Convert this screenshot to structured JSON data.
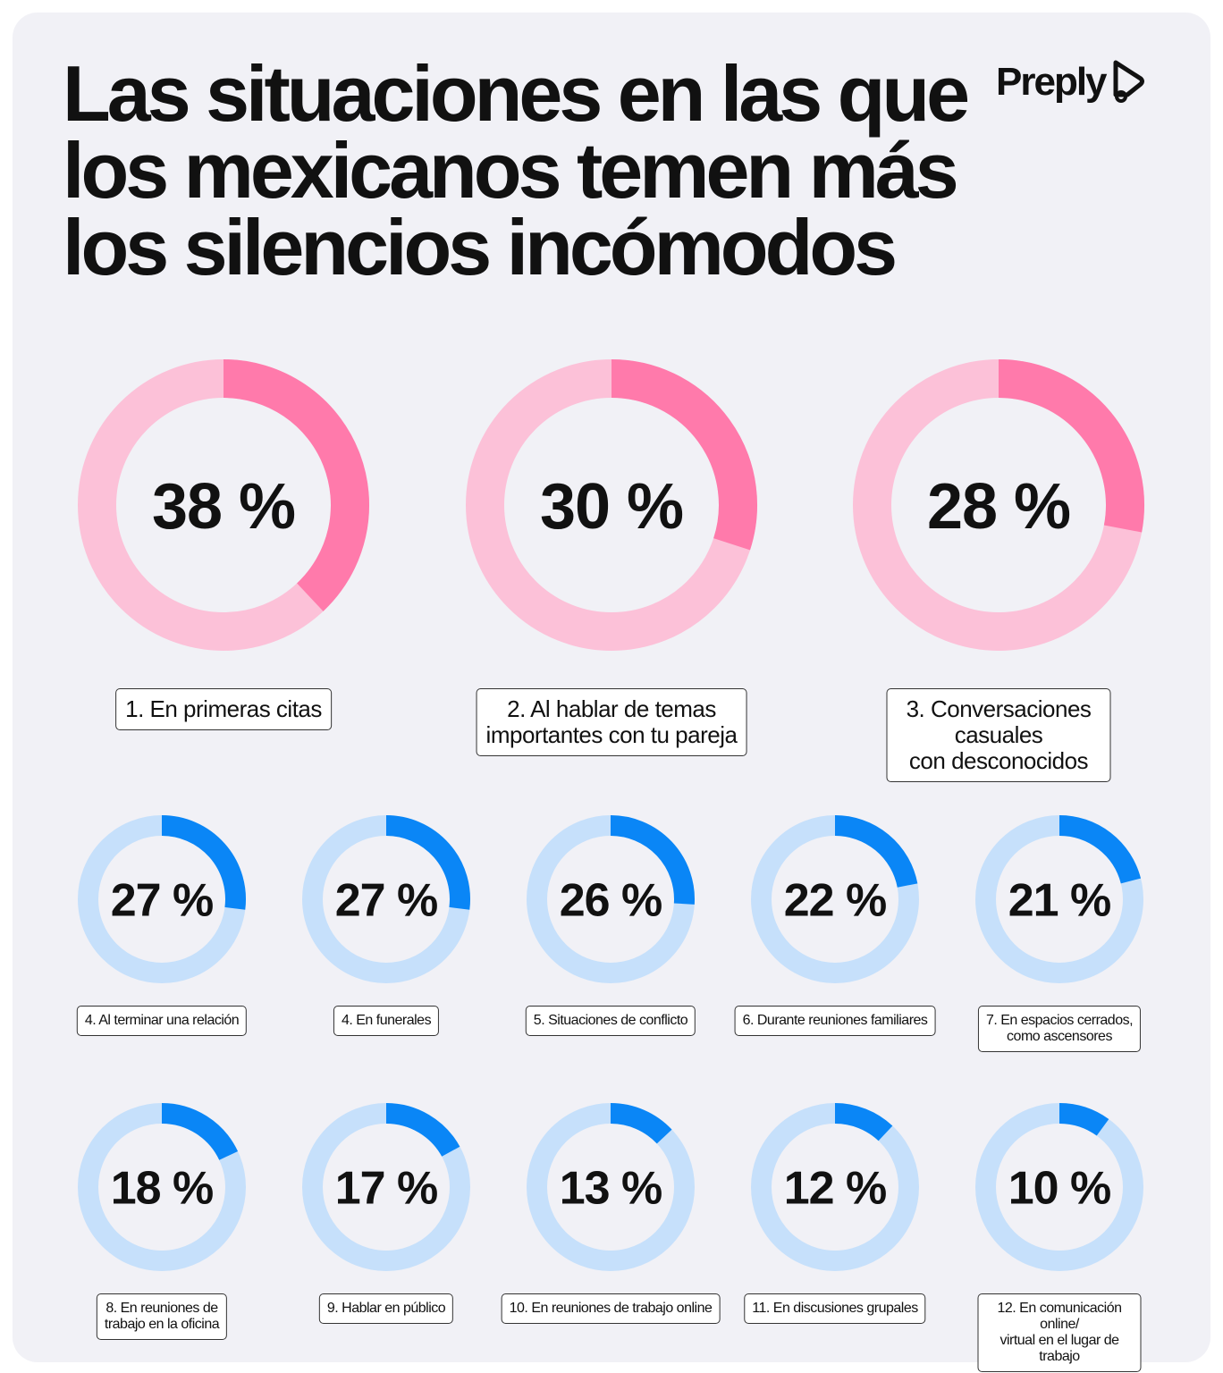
{
  "title": "Las situaciones en las que los mexicanos temen más los silencios incómodos",
  "logo": {
    "text": "Preply",
    "icon": "preply-play-icon"
  },
  "chart_data": {
    "type": "donut",
    "title": "Las situaciones en las que los mexicanos temen más los silencios incómodos",
    "unit": "%",
    "colors": {
      "pink_fill": "#ff7aab",
      "pink_track": "#fcc1d8",
      "blue_fill": "#0a86f6",
      "blue_track": "#c6e0fb"
    },
    "items": [
      {
        "label": "1.  En primeras citas",
        "value": 38,
        "display": "38 %"
      },
      {
        "label": "2. Al hablar de temas\nimportantes con tu pareja",
        "value": 30,
        "display": "30 %"
      },
      {
        "label": "3. Conversaciones casuales\ncon desconocidos",
        "value": 28,
        "display": "28 %"
      },
      {
        "label": "4. Al terminar una relación",
        "value": 27,
        "display": "27 %"
      },
      {
        "label": "4. En funerales",
        "value": 27,
        "display": "27 %"
      },
      {
        "label": "5. Situaciones de conflicto",
        "value": 26,
        "display": "26 %"
      },
      {
        "label": "6. Durante reuniones familiares",
        "value": 22,
        "display": "22 %"
      },
      {
        "label": "7. En espacios cerrados,\ncomo ascensores",
        "value": 21,
        "display": "21 %"
      },
      {
        "label": "8. En reuniones de\ntrabajo en la oficina",
        "value": 18,
        "display": "18 %"
      },
      {
        "label": "9. Hablar en público",
        "value": 17,
        "display": "17 %"
      },
      {
        "label": "10. En reuniones de trabajo online",
        "value": 13,
        "display": "13 %"
      },
      {
        "label": "11. En discusiones grupales",
        "value": 12,
        "display": "12 %"
      },
      {
        "label": "12. En comunicación online/\nvirtual en el lugar de trabajo",
        "value": 10,
        "display": "10 %"
      }
    ]
  }
}
